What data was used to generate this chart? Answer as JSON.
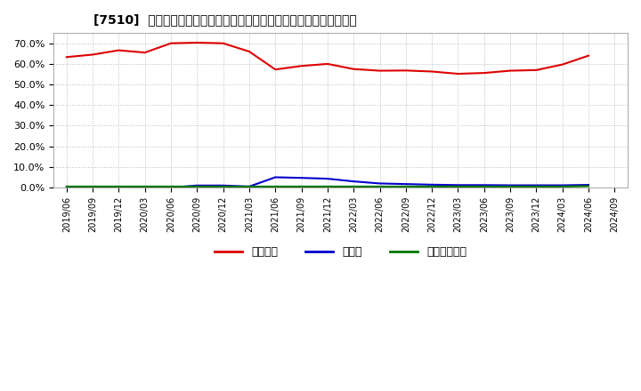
{
  "title": "[7510]  自己資本、のれん、繰延税金資産の総資産に対する比率の推移",
  "background_color": "#ffffff",
  "plot_background_color": "#ffffff",
  "grid_color": "#bbbbbb",
  "ylim": [
    0.0,
    0.75
  ],
  "yticks": [
    0.0,
    0.1,
    0.2,
    0.3,
    0.4,
    0.5,
    0.6,
    0.7
  ],
  "series": {
    "equity": {
      "label": "自己資本",
      "color": "#dd0000",
      "dates": [
        "2019/06",
        "2019/09",
        "2019/12",
        "2020/03",
        "2020/06",
        "2020/09",
        "2020/12",
        "2021/03",
        "2021/06",
        "2021/09",
        "2021/12",
        "2022/03",
        "2022/06",
        "2022/09",
        "2022/12",
        "2023/03",
        "2023/06",
        "2023/09",
        "2023/12",
        "2024/03",
        "2024/06"
      ],
      "values": [
        0.633,
        0.645,
        0.666,
        0.655,
        0.7,
        0.703,
        0.7,
        0.66,
        0.573,
        0.59,
        0.6,
        0.575,
        0.567,
        0.568,
        0.563,
        0.552,
        0.556,
        0.567,
        0.57,
        0.597,
        0.64
      ]
    },
    "noren": {
      "label": "のれん",
      "color": "#0000cc",
      "dates": [
        "2019/06",
        "2019/09",
        "2019/12",
        "2020/03",
        "2020/06",
        "2020/09",
        "2020/12",
        "2021/03",
        "2021/06",
        "2021/09",
        "2021/12",
        "2022/03",
        "2022/06",
        "2022/09",
        "2022/12",
        "2023/03",
        "2023/06",
        "2023/09",
        "2023/12",
        "2024/03",
        "2024/06"
      ],
      "values": [
        0.0,
        0.0,
        0.0,
        0.0,
        0.0,
        0.01,
        0.01,
        0.005,
        0.05,
        0.047,
        0.043,
        0.03,
        0.02,
        0.017,
        0.014,
        0.012,
        0.012,
        0.011,
        0.011,
        0.011,
        0.013
      ]
    },
    "deferred_tax": {
      "label": "繰延税金資産",
      "color": "#007700",
      "dates": [
        "2019/06",
        "2019/09",
        "2019/12",
        "2020/03",
        "2020/06",
        "2020/09",
        "2020/12",
        "2021/03",
        "2021/06",
        "2021/09",
        "2021/12",
        "2022/03",
        "2022/06",
        "2022/09",
        "2022/12",
        "2023/03",
        "2023/06",
        "2023/09",
        "2023/12",
        "2024/03",
        "2024/06"
      ],
      "values": [
        0.005,
        0.005,
        0.005,
        0.005,
        0.005,
        0.005,
        0.005,
        0.005,
        0.005,
        0.005,
        0.005,
        0.005,
        0.005,
        0.005,
        0.005,
        0.005,
        0.005,
        0.005,
        0.005,
        0.005,
        0.007
      ]
    }
  },
  "xtick_labels": [
    "2019/06",
    "2019/09",
    "2019/12",
    "2020/03",
    "2020/06",
    "2020/09",
    "2020/12",
    "2021/03",
    "2021/06",
    "2021/09",
    "2021/12",
    "2022/03",
    "2022/06",
    "2022/09",
    "2022/12",
    "2023/03",
    "2023/06",
    "2023/09",
    "2023/12",
    "2024/03",
    "2024/06",
    "2024/09"
  ],
  "legend_labels": [
    "自己資本",
    "のれん",
    "繰延税金資産"
  ],
  "legend_colors": [
    "#dd0000",
    "#0000cc",
    "#007700"
  ],
  "title_prefix": "[7510]",
  "title_main": "自己資本、のれん、繰延税金資産の総資産に対する比率の推移"
}
